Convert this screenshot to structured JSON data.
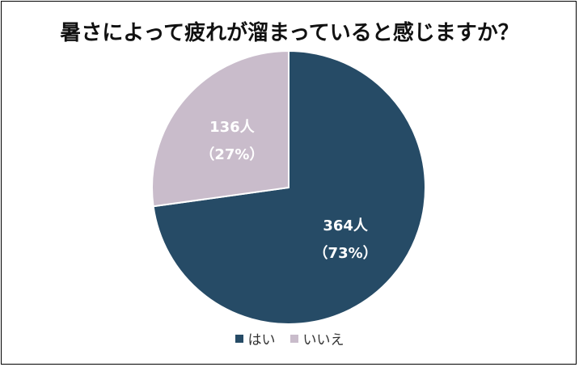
{
  "chart_data": {
    "type": "pie",
    "title": "暑さによって疲れが溜まっていると感じますか？",
    "categories": [
      "はい",
      "いいえ"
    ],
    "values": [
      364,
      136
    ],
    "percent_labels": [
      "（73%）",
      "（27%）"
    ],
    "value_labels": [
      "364人",
      "136人"
    ],
    "colors": [
      "#264B66",
      "#C9BCCB"
    ],
    "label_colors": [
      "#FFFFFF",
      "#FFFFFF"
    ],
    "legend_position": "bottom",
    "start_angle_deg": 0,
    "direction": "clockwise"
  }
}
